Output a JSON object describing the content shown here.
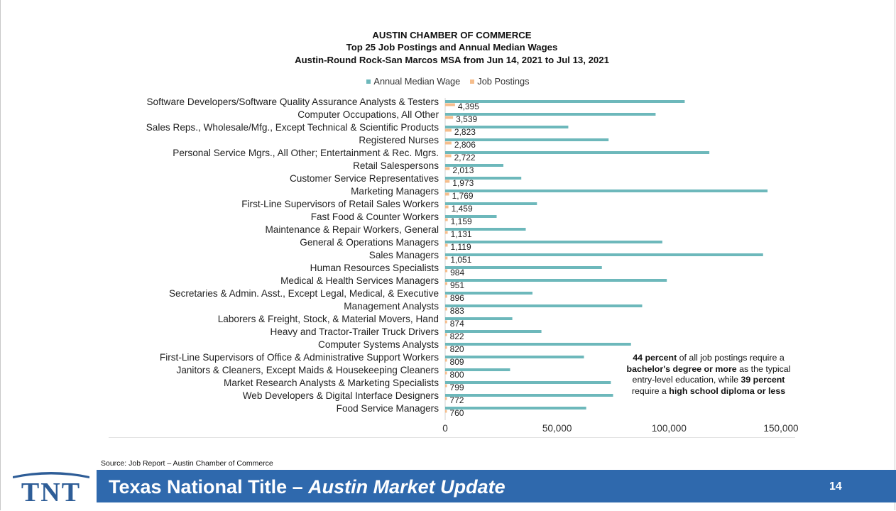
{
  "slide": {
    "source": "Source: Job Report – Austin Chamber of Commerce",
    "footer_title_main": "Texas National Title – ",
    "footer_title_italic": "Austin Market Update",
    "page_number": "14",
    "logo_text": "TNT",
    "colors": {
      "footer": "#2f69ad",
      "logo": "#2e5d97"
    }
  },
  "chart_data": {
    "type": "bar",
    "orientation": "horizontal",
    "title_lines": [
      "AUSTIN CHAMBER OF COMMERCE",
      "Top 25 Job Postings and Annual Median Wages",
      "Austin-Round Rock-San Marcos MSA from Jun 14, 2021 to Jul 13, 2021"
    ],
    "categories": [
      "Software Developers/Software Quality Assurance Analysts & Testers",
      "Computer Occupations, All Other",
      "Sales Reps., Wholesale/Mfg., Except Technical & Scientific Products",
      "Registered Nurses",
      "Personal Service Mgrs., All Other; Entertainment & Rec. Mgrs.",
      "Retail Salespersons",
      "Customer Service Representatives",
      "Marketing Managers",
      "First-Line Supervisors of Retail Sales Workers",
      "Fast Food & Counter Workers",
      "Maintenance & Repair Workers, General",
      "General & Operations Managers",
      "Sales Managers",
      "Human Resources Specialists",
      "Medical & Health Services Managers",
      "Secretaries & Admin. Asst., Except Legal, Medical, & Executive",
      "Management Analysts",
      "Laborers & Freight, Stock, & Material Movers, Hand",
      "Heavy and Tractor-Trailer Truck Drivers",
      "Computer Systems Analysts",
      "First-Line Supervisors of Office & Administrative Support Workers",
      "Janitors & Cleaners, Except Maids & Housekeeping Cleaners",
      "Market Research Analysts & Marketing Specialists",
      "Web Developers & Digital Interface Designers",
      "Food Service Managers"
    ],
    "series": [
      {
        "name": "Annual Median Wage",
        "color": "#6db8bb",
        "values": [
          107000,
          94000,
          55000,
          73000,
          118000,
          26000,
          34000,
          144000,
          41000,
          23000,
          36000,
          97000,
          142000,
          70000,
          99000,
          39000,
          88000,
          30000,
          43000,
          83000,
          62000,
          29000,
          74000,
          75000,
          63000
        ]
      },
      {
        "name": "Job Postings",
        "color": "#f5bd8c",
        "values": [
          4395,
          3539,
          2823,
          2806,
          2722,
          2013,
          1973,
          1769,
          1459,
          1159,
          1131,
          1119,
          1051,
          984,
          951,
          896,
          883,
          874,
          822,
          820,
          809,
          800,
          799,
          772,
          760
        ],
        "labels": [
          "4,395",
          "3,539",
          "2,823",
          "2,806",
          "2,722",
          "2,013",
          "1,973",
          "1,769",
          "1,459",
          "1,159",
          "1,131",
          "1,119",
          "1,051",
          "984",
          "951",
          "896",
          "883",
          "874",
          "822",
          "820",
          "809",
          "800",
          "799",
          "772",
          "760"
        ]
      }
    ],
    "xlim": [
      0,
      150000
    ],
    "xticks": [
      0,
      50000,
      100000,
      150000
    ],
    "xtick_labels": [
      "0",
      "50,000",
      "100,000",
      "150,000"
    ],
    "grid": false,
    "legend_position": "top-center",
    "annotation": {
      "parts": [
        {
          "text": "44 percent",
          "bold": true
        },
        {
          "text": " of all job postings require a ",
          "bold": false
        },
        {
          "text": "bachelor's degree or more",
          "bold": true
        },
        {
          "text": " as the typical entry-level education, while ",
          "bold": false
        },
        {
          "text": "39 percent",
          "bold": true
        },
        {
          "text": " require a ",
          "bold": false
        },
        {
          "text": "high school diploma or less",
          "bold": true
        }
      ]
    }
  }
}
